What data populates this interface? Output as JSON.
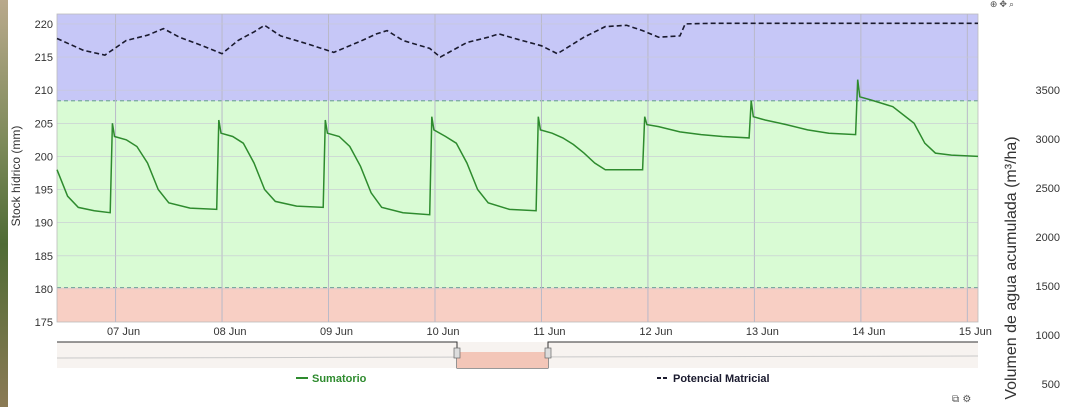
{
  "toolbar": {
    "icons": [
      "zoom-in-icon",
      "pan-icon",
      "reset-icon"
    ]
  },
  "chart_data": {
    "type": "line",
    "x_unit": "day (June)",
    "xlim": [
      6.45,
      15.1
    ],
    "y_left": {
      "label": "Stock hídrico (mm)",
      "lim": [
        175,
        221.5
      ],
      "ticks": [
        175,
        180,
        185,
        190,
        195,
        200,
        205,
        210,
        215,
        220
      ]
    },
    "y_right": {
      "label": "Volumen de agua acumulada (m³/ha)",
      "ticks": [
        500,
        1000,
        1500,
        2000,
        2500,
        3000,
        3500
      ]
    },
    "x_ticks": [
      {
        "x": 7,
        "label": "07 Jun"
      },
      {
        "x": 8,
        "label": "08 Jun"
      },
      {
        "x": 9,
        "label": "09 Jun"
      },
      {
        "x": 10,
        "label": "10 Jun"
      },
      {
        "x": 11,
        "label": "11 Jun"
      },
      {
        "x": 12,
        "label": "12 Jun"
      },
      {
        "x": 13,
        "label": "13 Jun"
      },
      {
        "x": 14,
        "label": "14 Jun"
      },
      {
        "x": 15,
        "label": "15 Jun"
      }
    ],
    "bands": [
      {
        "from": 175,
        "to": 180.2,
        "color": "#f8cfc4"
      },
      {
        "from": 180.2,
        "to": 208.4,
        "color": "#d9fbd4"
      },
      {
        "from": 208.4,
        "to": 221.5,
        "color": "#c6c7f7"
      }
    ],
    "threshold_lines": [
      180.2,
      208.4
    ],
    "series": [
      {
        "name": "Sumatorio",
        "color": "#2e8b2e",
        "style": "solid",
        "points": [
          [
            6.45,
            198
          ],
          [
            6.55,
            194
          ],
          [
            6.65,
            192.3
          ],
          [
            6.8,
            191.8
          ],
          [
            6.95,
            191.5
          ],
          [
            6.97,
            205
          ],
          [
            6.99,
            203
          ],
          [
            7.1,
            202.5
          ],
          [
            7.2,
            201.5
          ],
          [
            7.3,
            199
          ],
          [
            7.4,
            195
          ],
          [
            7.5,
            193
          ],
          [
            7.7,
            192.2
          ],
          [
            7.95,
            192
          ],
          [
            7.97,
            205.5
          ],
          [
            7.99,
            203.5
          ],
          [
            8.1,
            203
          ],
          [
            8.2,
            202
          ],
          [
            8.3,
            199
          ],
          [
            8.4,
            195
          ],
          [
            8.5,
            193.2
          ],
          [
            8.7,
            192.5
          ],
          [
            8.95,
            192.3
          ],
          [
            8.97,
            205.5
          ],
          [
            8.99,
            203.5
          ],
          [
            9.1,
            203
          ],
          [
            9.2,
            201.5
          ],
          [
            9.3,
            198.5
          ],
          [
            9.4,
            194.5
          ],
          [
            9.5,
            192.3
          ],
          [
            9.7,
            191.5
          ],
          [
            9.95,
            191.2
          ],
          [
            9.97,
            206
          ],
          [
            9.99,
            204
          ],
          [
            10.1,
            203
          ],
          [
            10.2,
            202
          ],
          [
            10.3,
            199
          ],
          [
            10.4,
            195
          ],
          [
            10.5,
            193
          ],
          [
            10.7,
            192
          ],
          [
            10.95,
            191.8
          ],
          [
            10.97,
            206
          ],
          [
            10.99,
            204
          ],
          [
            11.1,
            203.5
          ],
          [
            11.2,
            202.8
          ],
          [
            11.3,
            201.8
          ],
          [
            11.4,
            200.5
          ],
          [
            11.5,
            199
          ],
          [
            11.6,
            198
          ],
          [
            11.95,
            198
          ],
          [
            11.97,
            206
          ],
          [
            11.99,
            204.8
          ],
          [
            12.1,
            204.5
          ],
          [
            12.3,
            203.7
          ],
          [
            12.5,
            203.3
          ],
          [
            12.7,
            203
          ],
          [
            12.95,
            202.8
          ],
          [
            12.97,
            208.4
          ],
          [
            12.99,
            206
          ],
          [
            13.1,
            205.5
          ],
          [
            13.3,
            204.8
          ],
          [
            13.5,
            204
          ],
          [
            13.7,
            203.5
          ],
          [
            13.95,
            203.3
          ],
          [
            13.97,
            211.6
          ],
          [
            13.99,
            209
          ],
          [
            14.1,
            208.5
          ],
          [
            14.3,
            207.5
          ],
          [
            14.5,
            205
          ],
          [
            14.6,
            202
          ],
          [
            14.7,
            200.5
          ],
          [
            14.85,
            200.2
          ],
          [
            15.1,
            200
          ]
        ]
      },
      {
        "name": "Potencial Matricial",
        "color": "#1a1a2e",
        "style": "dashed",
        "points": [
          [
            6.45,
            217.8
          ],
          [
            6.7,
            216
          ],
          [
            6.9,
            215.3
          ],
          [
            7.1,
            217.5
          ],
          [
            7.3,
            218.3
          ],
          [
            7.45,
            219.3
          ],
          [
            7.6,
            218
          ],
          [
            7.8,
            216.8
          ],
          [
            8.0,
            215.5
          ],
          [
            8.15,
            217.5
          ],
          [
            8.3,
            218.8
          ],
          [
            8.4,
            219.8
          ],
          [
            8.55,
            218.2
          ],
          [
            8.8,
            217
          ],
          [
            9.05,
            215.7
          ],
          [
            9.3,
            217.4
          ],
          [
            9.45,
            218.5
          ],
          [
            9.55,
            219
          ],
          [
            9.7,
            217.5
          ],
          [
            9.95,
            216.3
          ],
          [
            10.05,
            215
          ],
          [
            10.3,
            217.2
          ],
          [
            10.5,
            218
          ],
          [
            10.6,
            218.5
          ],
          [
            10.75,
            217.8
          ],
          [
            11.0,
            216.7
          ],
          [
            11.15,
            215.5
          ],
          [
            11.4,
            218
          ],
          [
            11.6,
            219.6
          ],
          [
            11.8,
            219.8
          ],
          [
            11.95,
            219
          ],
          [
            12.1,
            218
          ],
          [
            12.3,
            218.2
          ],
          [
            12.35,
            220
          ],
          [
            12.6,
            220.1
          ],
          [
            15.1,
            220.1
          ]
        ]
      }
    ],
    "navigator_tick_labels": [],
    "legend": [
      "Sumatorio",
      "Potencial Matricial"
    ]
  }
}
